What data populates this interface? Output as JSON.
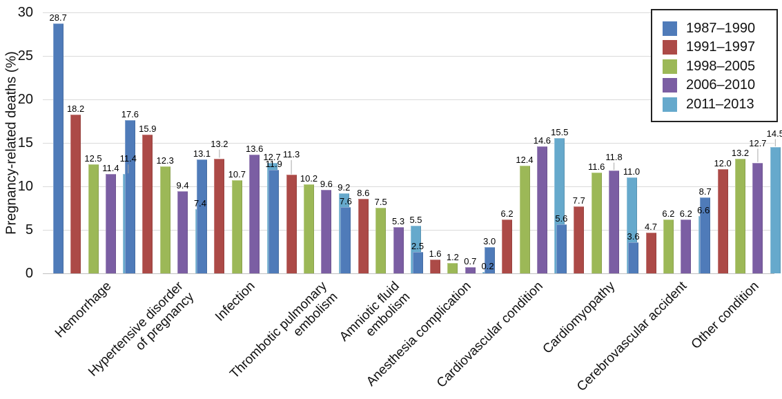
{
  "chart_data": {
    "type": "bar",
    "title": "",
    "xlabel": "",
    "ylabel": "Pregnancy-related deaths (%)",
    "ylim": [
      0,
      30
    ],
    "yticks": [
      0,
      5,
      10,
      15,
      20,
      25,
      30
    ],
    "grid": true,
    "legend_position": "top-right",
    "value_labels_shown": true,
    "categories": [
      "Hemorrhage",
      "Hypertensive disorder\nof pregnancy",
      "Infection",
      "Thrombotic pulmonary\nembolism",
      "Amniotic fluid\nembolism",
      "Anesthesia complication",
      "Cardiovascular condition",
      "Cardiomyopathy",
      "Cerebrovascular accident",
      "Other condition"
    ],
    "series": [
      {
        "name": "1987–1990",
        "color": "#4F7BB9",
        "values": [
          28.7,
          17.6,
          13.1,
          11.9,
          7.6,
          2.5,
          3.0,
          5.6,
          3.6,
          8.7
        ]
      },
      {
        "name": "1991–1997",
        "color": "#AC4A47",
        "values": [
          18.2,
          15.9,
          13.2,
          11.3,
          8.6,
          1.6,
          6.2,
          7.7,
          4.7,
          12.0
        ]
      },
      {
        "name": "1998–2005",
        "color": "#9CB857",
        "values": [
          12.5,
          12.3,
          10.7,
          10.2,
          7.5,
          1.2,
          12.4,
          11.6,
          6.2,
          13.2
        ]
      },
      {
        "name": "2006–2010",
        "color": "#7B5EA3",
        "values": [
          11.4,
          9.4,
          13.6,
          9.6,
          5.3,
          0.7,
          14.6,
          11.8,
          6.2,
          12.7
        ]
      },
      {
        "name": "2011–2013",
        "color": "#66A9CC",
        "values": [
          11.4,
          7.4,
          12.7,
          9.2,
          5.5,
          0.2,
          15.5,
          11.0,
          6.6,
          14.5
        ]
      }
    ],
    "colors": {
      "grid": "#DADADA",
      "baseline": "#BFBFBF",
      "leader_line": "#A8A8A8",
      "text": "#111111",
      "legend_border": "#222222",
      "background": "#FFFFFF"
    }
  }
}
